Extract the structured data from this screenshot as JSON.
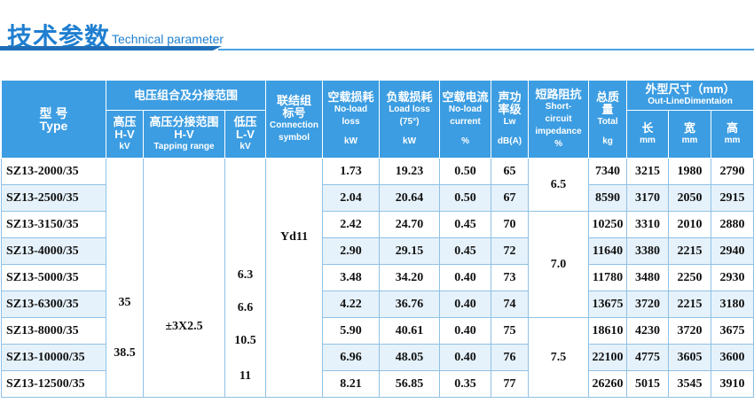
{
  "header": {
    "title": "技术参数",
    "subtitle": "Technical parameter"
  },
  "table": {
    "columns": {
      "type": [
        "型 号",
        "Type"
      ],
      "voltage": "电压组合及分接范围",
      "hv": [
        "高压",
        "H-V",
        "kV"
      ],
      "tap": [
        "高压分接范围",
        "H-V",
        "Tapping range"
      ],
      "lv": [
        "低压",
        "L-V",
        "kV"
      ],
      "connection": [
        "联结组",
        "标号",
        "Connection",
        "symbol"
      ],
      "noload_loss": [
        "空载损耗",
        "No-load",
        "loss",
        "kW"
      ],
      "load_loss": [
        "负载损耗",
        "Load loss",
        "(75°)",
        "kW"
      ],
      "noload_current": [
        "空载电流",
        "No-load",
        "current",
        "%"
      ],
      "lw": [
        "声功",
        "率级",
        "Lw",
        "dB(A)"
      ],
      "impedance": [
        "短路阻抗",
        "Short-",
        "circuit",
        "impedance",
        "%"
      ],
      "weight": [
        "总质",
        "量",
        "Total",
        "kg"
      ],
      "dimension": [
        "外型尺寸（mm）",
        "Out-LineDimentaion"
      ],
      "length": [
        "长",
        "mm"
      ],
      "width": [
        "宽",
        "mm"
      ],
      "height": [
        "高",
        "mm"
      ]
    },
    "rows": [
      [
        "SZ13-2000/35",
        "1.73",
        "19.23",
        "0.50",
        "65",
        "7340",
        "3215",
        "1980",
        "2790"
      ],
      [
        "SZ13-2500/35",
        "2.04",
        "20.64",
        "0.50",
        "67",
        "8590",
        "3170",
        "2050",
        "2915"
      ],
      [
        "SZ13-3150/35",
        "2.42",
        "24.70",
        "0.45",
        "70",
        "10250",
        "3310",
        "2010",
        "2880"
      ],
      [
        "SZ13-4000/35",
        "2.90",
        "29.15",
        "0.45",
        "72",
        "11640",
        "3380",
        "2215",
        "2940"
      ],
      [
        "SZ13-5000/35",
        "3.48",
        "34.20",
        "0.40",
        "73",
        "11780",
        "3480",
        "2250",
        "2930"
      ],
      [
        "SZ13-6300/35",
        "4.22",
        "36.76",
        "0.40",
        "74",
        "13675",
        "3720",
        "2215",
        "3180"
      ],
      [
        "SZ13-8000/35",
        "5.90",
        "40.61",
        "0.40",
        "75",
        "18610",
        "4230",
        "3720",
        "3675"
      ],
      [
        "SZ13-10000/35",
        "6.96",
        "48.05",
        "0.40",
        "76",
        "22100",
        "4775",
        "3605",
        "3600"
      ],
      [
        "SZ13-12500/35",
        "8.21",
        "56.85",
        "0.35",
        "77",
        "26260",
        "5015",
        "3545",
        "3910"
      ]
    ],
    "hv_values": [
      "35",
      "38.5"
    ],
    "tap_value": "±3X2.5",
    "lv_values": [
      "6.3",
      "6.6",
      "10.5",
      "11"
    ],
    "connection_value": "Yd11",
    "impedance": [
      "6.5",
      null,
      "7.0",
      null,
      null,
      null,
      "7.5",
      null,
      null
    ]
  }
}
